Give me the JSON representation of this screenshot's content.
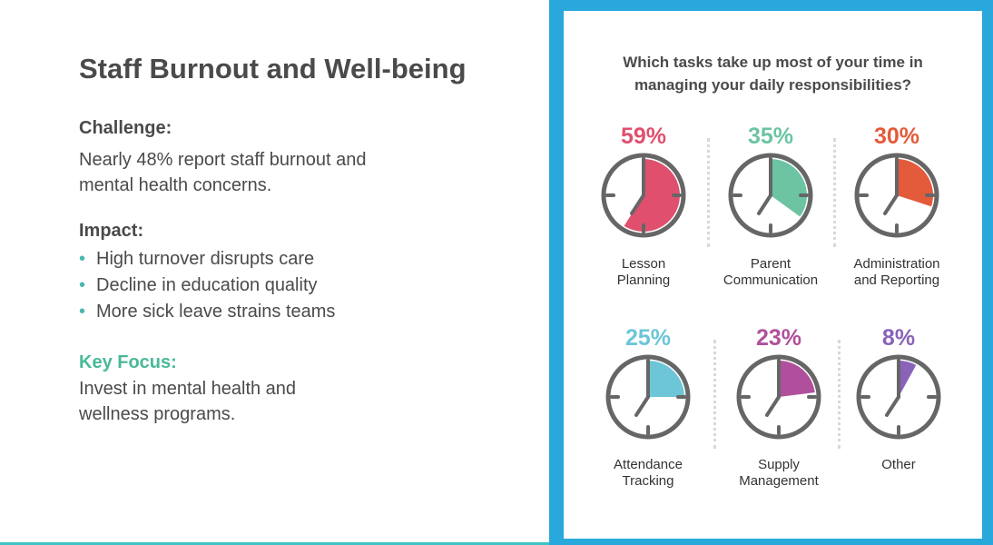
{
  "title": "Staff Burnout and Well-being",
  "challenge": {
    "label": "Challenge:",
    "text_lines": [
      "Nearly 48% report staff burnout and",
      "mental health concerns."
    ]
  },
  "impact": {
    "label": "Impact:",
    "bullets": [
      "High turnover disrupts care",
      "Decline in education quality",
      "More sick leave strains teams"
    ]
  },
  "key_focus": {
    "label": "Key Focus:",
    "text_lines": [
      "Invest in mental health and",
      "wellness programs."
    ]
  },
  "colors": {
    "accent_green": "#4ab89a",
    "frame_blue": "#29a8dc",
    "clock_gray": "#666666"
  },
  "chart_data": {
    "type": "pie",
    "title_lines": [
      "Which tasks take up most of your time in",
      "managing your daily responsibilities?"
    ],
    "items": [
      {
        "label_lines": [
          "Lesson",
          "Planning"
        ],
        "value": 59,
        "display": "59%",
        "color": "#e0506e"
      },
      {
        "label_lines": [
          "Parent",
          "Communication"
        ],
        "value": 35,
        "display": "35%",
        "color": "#6cc4a2"
      },
      {
        "label_lines": [
          "Administration",
          "and Reporting"
        ],
        "value": 30,
        "display": "30%",
        "color": "#e35b3b"
      },
      {
        "label_lines": [
          "Attendance",
          "Tracking"
        ],
        "value": 25,
        "display": "25%",
        "color": "#6cc6d8"
      },
      {
        "label_lines": [
          "Supply",
          "Management"
        ],
        "value": 23,
        "display": "23%",
        "color": "#b0509c"
      },
      {
        "label_lines": [
          "Other",
          ""
        ],
        "value": 8,
        "display": "8%",
        "color": "#8a62b8"
      }
    ]
  }
}
